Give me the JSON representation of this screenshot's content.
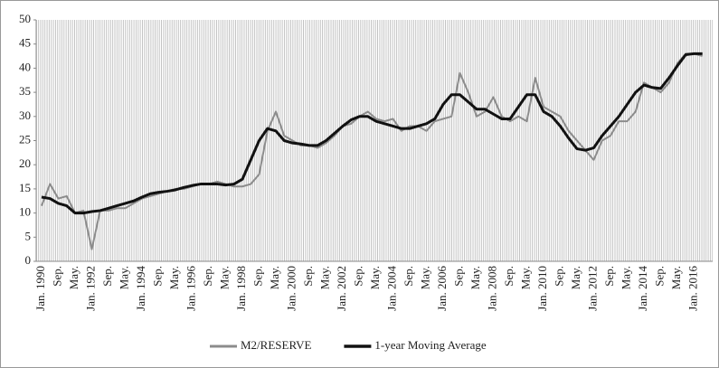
{
  "chart_data": {
    "type": "line",
    "categories": [
      "Jan. 1990",
      null,
      "Sep.",
      null,
      "May.",
      null,
      "Jan. 1992",
      null,
      "Sep.",
      null,
      "May.",
      null,
      "Jan. 1994",
      null,
      "Sep.",
      null,
      "May.",
      null,
      "Jan. 1996",
      null,
      "Sep.",
      null,
      "May.",
      null,
      "Jan. 1998",
      null,
      "Sep.",
      null,
      "May.",
      null,
      "Jan. 2000",
      null,
      "Sep.",
      null,
      "May.",
      null,
      "Jan. 2002",
      null,
      "Sep.",
      null,
      "May.",
      null,
      "Jan. 2004",
      null,
      "Sep.",
      null,
      "May.",
      null,
      "Jan. 2006",
      null,
      "Sep.",
      null,
      "May.",
      null,
      "Jan. 2008",
      null,
      "Sep.",
      null,
      "May.",
      null,
      "Jan. 2010",
      null,
      "Sep.",
      null,
      "May.",
      null,
      "Jan. 2012",
      null,
      "Sep.",
      null,
      "May.",
      null,
      "Jan. 2014",
      null,
      "Sep.",
      null,
      "May.",
      null,
      "Jan. 2016",
      null
    ],
    "series": [
      {
        "name": "M2/RESERVE",
        "color": "#8c8c8c",
        "values": [
          11.5,
          16,
          13,
          13.5,
          10,
          10.5,
          2.5,
          10.5,
          10.5,
          11,
          11,
          12,
          13,
          13.5,
          14,
          14.5,
          15,
          15,
          15.5,
          16,
          16,
          16.5,
          16,
          15.5,
          15.5,
          16,
          18,
          27,
          31,
          26,
          25,
          24,
          24,
          23.5,
          24.5,
          26,
          28,
          28.5,
          30,
          31,
          29.5,
          29,
          29.5,
          27,
          28,
          28,
          27,
          29,
          29.5,
          30,
          39,
          35,
          30,
          31,
          34,
          30,
          29,
          30,
          29,
          38,
          32,
          31,
          30,
          27,
          25,
          23,
          21,
          25,
          26,
          29,
          29,
          31,
          37,
          36,
          35,
          37,
          41,
          43,
          43,
          42.5
        ]
      },
      {
        "name": "1-year Moving Average",
        "color": "#111111",
        "values": [
          13.3,
          13,
          12,
          11.5,
          10,
          10,
          10.3,
          10.5,
          11,
          11.5,
          12,
          12.5,
          13.3,
          14,
          14.3,
          14.5,
          14.8,
          15.3,
          15.7,
          16,
          16,
          16,
          15.8,
          16,
          17,
          21,
          25,
          27.5,
          27,
          25,
          24.5,
          24.3,
          24,
          24,
          25,
          26.5,
          28,
          29.3,
          30,
          30,
          29,
          28.5,
          28,
          27.5,
          27.5,
          28,
          28.5,
          29.5,
          32.5,
          34.5,
          34.5,
          33,
          31.5,
          31.5,
          30.5,
          29.5,
          29.5,
          32,
          34.5,
          34.5,
          31,
          30,
          28,
          25.5,
          23.3,
          23,
          23.5,
          26,
          28,
          30,
          32.5,
          35,
          36.5,
          36,
          35.8,
          38,
          40.5,
          42.8,
          43,
          43
        ]
      }
    ],
    "ylim": [
      0,
      50
    ],
    "yticks": [
      0,
      5,
      10,
      15,
      20,
      25,
      30,
      35,
      40,
      45,
      50
    ],
    "legend": "bottom"
  }
}
